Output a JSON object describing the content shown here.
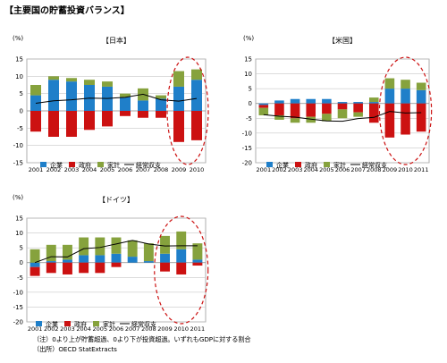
{
  "page_title": "【主要国の貯蓄投資バランス】",
  "colors": {
    "corporate": "#1f7fc9",
    "government": "#cc1111",
    "household": "#86a23d",
    "current_account": "#000000",
    "highlight": "#cc1111",
    "grid": "#c8c8c8"
  },
  "notes": [
    "（注）0より上が貯蓄超過、0より下が投資超過。いずれもGDPに対する割合",
    "（出所）OECD StatExtracts"
  ],
  "chart_data": [
    {
      "id": "japan",
      "type": "bar",
      "stacking": "diverging-stacked",
      "title": "【日本】",
      "unit_label": "(%)",
      "ylim": [
        -15,
        15
      ],
      "yticks": [
        -15,
        -10,
        -5,
        0,
        5,
        10,
        15
      ],
      "grid": true,
      "legend_position": "bottom",
      "categories": [
        "2001",
        "2002",
        "2003",
        "2004",
        "2005",
        "2006",
        "2007",
        "2008",
        "2009",
        "2010"
      ],
      "series": [
        {
          "name": "企業",
          "kind": "bar",
          "color_key": "corporate",
          "values": [
            4.5,
            9.0,
            8.5,
            7.5,
            7.0,
            4.0,
            3.0,
            3.5,
            7.0,
            9.0
          ]
        },
        {
          "name": "政府",
          "kind": "bar",
          "color_key": "government",
          "values": [
            -6.0,
            -7.5,
            -7.5,
            -5.5,
            -4.5,
            -1.5,
            -2.0,
            -2.0,
            -9.0,
            -8.5
          ]
        },
        {
          "name": "家計",
          "kind": "bar",
          "color_key": "household",
          "values": [
            3.0,
            1.0,
            1.0,
            1.5,
            1.5,
            1.0,
            3.5,
            1.0,
            4.5,
            3.0
          ]
        },
        {
          "name": "経常収支",
          "kind": "line",
          "color_key": "current_account",
          "values": [
            2.2,
            2.9,
            3.2,
            3.7,
            3.6,
            3.9,
            4.8,
            3.2,
            2.8,
            3.6
          ]
        }
      ],
      "highlight": {
        "from_category": "2009",
        "to_category": "2010"
      }
    },
    {
      "id": "usa",
      "type": "bar",
      "stacking": "diverging-stacked",
      "title": "【米国】",
      "unit_label": "(%)",
      "ylim": [
        -20,
        15
      ],
      "yticks": [
        -20,
        -15,
        -10,
        -5,
        0,
        5,
        10,
        15
      ],
      "grid": true,
      "legend_position": "bottom",
      "categories": [
        "2001",
        "2002",
        "2003",
        "2004",
        "2005",
        "2006",
        "2007",
        "2008",
        "2009",
        "2010",
        "2011"
      ],
      "series": [
        {
          "name": "企業",
          "kind": "bar",
          "color_key": "corporate",
          "values": [
            -0.5,
            1.0,
            1.5,
            1.5,
            1.5,
            0.5,
            0.5,
            0.5,
            5.0,
            5.0,
            4.5
          ]
        },
        {
          "name": "政府",
          "kind": "bar",
          "color_key": "government",
          "values": [
            -1.0,
            -4.0,
            -5.0,
            -4.5,
            -3.5,
            -2.0,
            -3.0,
            -6.5,
            -11.5,
            -10.5,
            -9.5
          ]
        },
        {
          "name": "家計",
          "kind": "bar",
          "color_key": "household",
          "values": [
            -2.5,
            -1.5,
            -1.5,
            -2.0,
            -2.5,
            -3.0,
            -1.5,
            1.5,
            3.5,
            3.0,
            2.5
          ]
        },
        {
          "name": "経常収支",
          "kind": "line",
          "color_key": "current_account",
          "values": [
            -3.8,
            -4.3,
            -4.6,
            -5.3,
            -5.9,
            -6.0,
            -5.1,
            -4.7,
            -2.7,
            -3.2,
            -3.1
          ]
        }
      ],
      "highlight": {
        "from_category": "2009",
        "to_category": "2011"
      }
    },
    {
      "id": "germany",
      "type": "bar",
      "stacking": "diverging-stacked",
      "title": "【ドイツ】",
      "unit_label": "(%)",
      "ylim": [
        -20,
        15
      ],
      "yticks": [
        -20,
        -15,
        -10,
        -5,
        0,
        5,
        10,
        15
      ],
      "grid": true,
      "legend_position": "bottom",
      "categories": [
        "2001",
        "2002",
        "2003",
        "2004",
        "2005",
        "2006",
        "2007",
        "2008",
        "2009",
        "2010",
        "2011"
      ],
      "series": [
        {
          "name": "企業",
          "kind": "bar",
          "color_key": "corporate",
          "values": [
            -1.5,
            0.5,
            1.0,
            2.5,
            2.5,
            3.0,
            2.0,
            0.5,
            3.0,
            4.5,
            1.0
          ]
        },
        {
          "name": "政府",
          "kind": "bar",
          "color_key": "government",
          "values": [
            -3.0,
            -3.5,
            -4.0,
            -3.5,
            -3.5,
            -1.5,
            0.0,
            0.0,
            -3.0,
            -4.0,
            -1.0
          ]
        },
        {
          "name": "家計",
          "kind": "bar",
          "color_key": "household",
          "values": [
            4.5,
            5.5,
            5.0,
            6.0,
            6.0,
            5.5,
            5.5,
            6.0,
            6.0,
            6.0,
            5.5
          ]
        },
        {
          "name": "経常収支",
          "kind": "line",
          "color_key": "current_account",
          "values": [
            0.0,
            2.0,
            1.9,
            4.7,
            5.1,
            6.3,
            7.5,
            6.3,
            5.6,
            5.7,
            5.7
          ]
        }
      ],
      "highlight": {
        "from_category": "2009",
        "to_category": "2011"
      }
    }
  ]
}
